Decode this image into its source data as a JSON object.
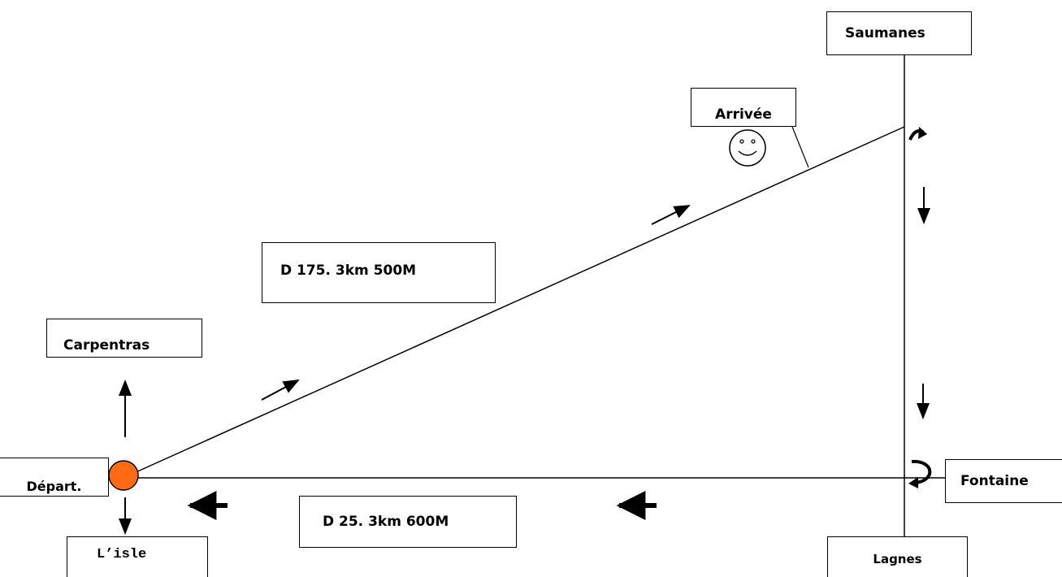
{
  "labels": {
    "saumanes": "Saumanes",
    "arrivee": "Arrivée",
    "d175": "D 175. 3km 500M",
    "carpentras": "Carpentras",
    "depart": "Départ.",
    "lisle": "L’isle",
    "d25": "D 25. 3km 600M",
    "fontaine": "Fontaine",
    "lagnes": "Lagnes"
  },
  "colors": {
    "start_marker": "#ff6a13",
    "lines": "#000000"
  },
  "icons": [
    "smiley-face-icon",
    "turn-right-arrow-icon",
    "u-turn-arrow-icon"
  ]
}
